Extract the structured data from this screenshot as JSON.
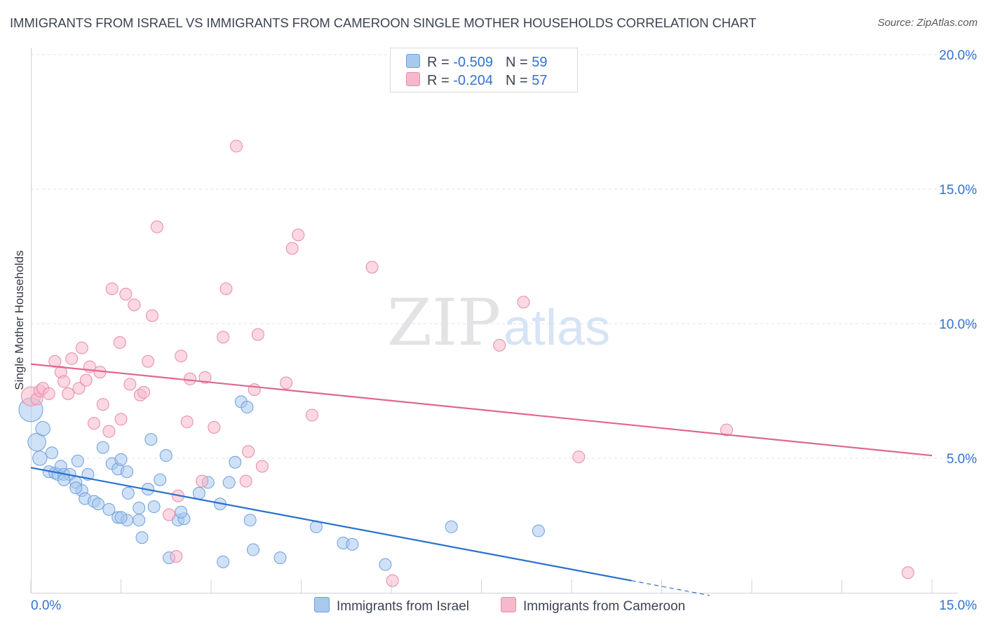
{
  "title": "IMMIGRANTS FROM ISRAEL VS IMMIGRANTS FROM CAMEROON SINGLE MOTHER HOUSEHOLDS CORRELATION CHART",
  "source": "Source: ZipAtlas.com",
  "watermark": {
    "zip": "ZIP",
    "atlas": "atlas"
  },
  "stats": [
    {
      "r_label": "R = ",
      "r_value": "-0.509",
      "n_label": "N = ",
      "n_value": "59",
      "color": "#a8c8ee",
      "border": "#6d9fdc"
    },
    {
      "r_label": "R = ",
      "r_value": "-0.204",
      "n_label": "N = ",
      "n_value": "57",
      "color": "#f7b8cb",
      "border": "#e88aa7"
    }
  ],
  "legend": [
    {
      "label": "Immigrants from Israel",
      "color": "#a8c8ee",
      "border": "#6d9fdc"
    },
    {
      "label": "Immigrants from Cameroon",
      "color": "#f7b8cb",
      "border": "#e88aa7"
    }
  ],
  "chart_data": {
    "type": "scatter",
    "title": "IMMIGRANTS FROM ISRAEL VS IMMIGRANTS FROM CAMEROON SINGLE MOTHER HOUSEHOLDS CORRELATION CHART",
    "xlabel": "",
    "ylabel": "Single Mother Households",
    "xlim": [
      0,
      15
    ],
    "ylim": [
      0,
      20
    ],
    "x_tick_labels": [
      "0.0%",
      "15.0%"
    ],
    "y_tick_labels": [
      {
        "value": 5,
        "label": "5.0%"
      },
      {
        "value": 10,
        "label": "10.0%"
      },
      {
        "value": 15,
        "label": "15.0%"
      },
      {
        "value": 20,
        "label": "20.0%"
      }
    ],
    "grid": true,
    "series": [
      {
        "name": "Immigrants from Israel",
        "color": "#a8c8ee",
        "edge": "#6d9fdc",
        "line_color": "#2a70cd",
        "trend": {
          "x0": 0,
          "y0": 4.65,
          "x1": 10.0,
          "y1": 0.45,
          "dash_to_x": 11.3,
          "dash_to_y": -0.1
        },
        "points": [
          [
            0.0,
            6.8,
            2
          ],
          [
            0.1,
            5.6,
            1.5
          ],
          [
            0.2,
            6.1,
            1.2
          ],
          [
            0.15,
            5.0,
            1.2
          ],
          [
            0.35,
            5.2,
            1
          ],
          [
            0.3,
            4.5,
            1
          ],
          [
            0.4,
            4.45,
            1
          ],
          [
            0.45,
            4.4,
            1
          ],
          [
            0.5,
            4.7,
            1
          ],
          [
            0.55,
            4.4,
            1
          ],
          [
            0.65,
            4.4,
            1
          ],
          [
            0.55,
            4.2,
            1
          ],
          [
            0.75,
            4.1,
            1
          ],
          [
            0.78,
            4.9,
            1
          ],
          [
            0.85,
            3.8,
            1
          ],
          [
            0.9,
            3.5,
            1
          ],
          [
            0.95,
            4.4,
            1
          ],
          [
            0.75,
            3.9,
            1
          ],
          [
            1.05,
            3.4,
            1
          ],
          [
            1.12,
            3.3,
            1
          ],
          [
            1.2,
            5.4,
            1
          ],
          [
            1.3,
            3.1,
            1
          ],
          [
            1.35,
            4.8,
            1
          ],
          [
            1.45,
            4.6,
            1
          ],
          [
            1.5,
            4.95,
            1
          ],
          [
            1.45,
            2.8,
            1
          ],
          [
            1.6,
            2.7,
            1
          ],
          [
            1.8,
            3.15,
            1
          ],
          [
            1.8,
            2.7,
            1
          ],
          [
            1.62,
            3.7,
            1
          ],
          [
            1.85,
            2.05,
            1
          ],
          [
            1.95,
            3.85,
            1
          ],
          [
            2.05,
            3.2,
            1
          ],
          [
            2.15,
            4.2,
            1
          ],
          [
            2.3,
            1.3,
            1
          ],
          [
            2.25,
            5.1,
            1
          ],
          [
            2.45,
            2.7,
            1
          ],
          [
            2.55,
            2.75,
            1
          ],
          [
            2.5,
            3.0,
            1
          ],
          [
            2.8,
            3.7,
            1
          ],
          [
            2.95,
            4.1,
            1
          ],
          [
            3.15,
            3.3,
            1
          ],
          [
            3.2,
            1.15,
            1
          ],
          [
            3.3,
            4.1,
            1
          ],
          [
            3.4,
            4.85,
            1
          ],
          [
            3.5,
            7.1,
            1
          ],
          [
            3.6,
            6.9,
            1
          ],
          [
            3.65,
            2.7,
            1
          ],
          [
            3.7,
            1.6,
            1
          ],
          [
            4.15,
            1.3,
            1
          ],
          [
            4.75,
            2.45,
            1
          ],
          [
            5.2,
            1.85,
            1
          ],
          [
            5.35,
            1.8,
            1
          ],
          [
            5.9,
            1.05,
            1
          ],
          [
            7.0,
            2.45,
            1
          ],
          [
            8.45,
            2.3,
            1
          ],
          [
            1.6,
            4.5,
            1
          ],
          [
            2.0,
            5.7,
            1
          ],
          [
            1.5,
            2.8,
            1
          ]
        ]
      },
      {
        "name": "Immigrants from Cameroon",
        "color": "#f7b8cb",
        "edge": "#e88aa7",
        "line_color": "#e0678f",
        "trend": {
          "x0": 0,
          "y0": 8.5,
          "x1": 15.0,
          "y1": 5.1
        },
        "points": [
          [
            0.0,
            7.3,
            1.6
          ],
          [
            0.1,
            7.2,
            1
          ],
          [
            0.15,
            7.5,
            1
          ],
          [
            0.2,
            7.6,
            1
          ],
          [
            0.3,
            7.4,
            1
          ],
          [
            0.4,
            8.6,
            1
          ],
          [
            0.5,
            8.2,
            1
          ],
          [
            0.55,
            7.85,
            1
          ],
          [
            0.62,
            7.4,
            1
          ],
          [
            0.68,
            8.7,
            1
          ],
          [
            0.8,
            7.6,
            1
          ],
          [
            0.85,
            9.1,
            1
          ],
          [
            0.92,
            7.9,
            1
          ],
          [
            0.98,
            8.4,
            1
          ],
          [
            1.05,
            6.3,
            1
          ],
          [
            1.15,
            8.2,
            1
          ],
          [
            1.2,
            7.0,
            1
          ],
          [
            1.3,
            6.0,
            1
          ],
          [
            1.35,
            11.3,
            1
          ],
          [
            1.48,
            9.3,
            1
          ],
          [
            1.5,
            6.45,
            1
          ],
          [
            1.58,
            11.1,
            1
          ],
          [
            1.65,
            7.75,
            1
          ],
          [
            1.72,
            10.7,
            1
          ],
          [
            1.82,
            7.35,
            1
          ],
          [
            1.88,
            7.45,
            1
          ],
          [
            1.95,
            8.6,
            1
          ],
          [
            2.02,
            10.3,
            1
          ],
          [
            2.1,
            13.6,
            1
          ],
          [
            2.3,
            2.9,
            1
          ],
          [
            2.42,
            1.35,
            1
          ],
          [
            2.45,
            3.6,
            1
          ],
          [
            2.5,
            8.8,
            1
          ],
          [
            2.6,
            6.35,
            1
          ],
          [
            2.65,
            7.95,
            1
          ],
          [
            2.85,
            4.15,
            1
          ],
          [
            2.9,
            8.0,
            1
          ],
          [
            3.05,
            6.15,
            1
          ],
          [
            3.2,
            9.5,
            1
          ],
          [
            3.25,
            11.3,
            1
          ],
          [
            3.42,
            16.6,
            1
          ],
          [
            3.58,
            4.15,
            1
          ],
          [
            3.62,
            5.25,
            1
          ],
          [
            3.72,
            7.55,
            1
          ],
          [
            3.78,
            9.6,
            1
          ],
          [
            3.85,
            4.7,
            1
          ],
          [
            4.25,
            7.8,
            1
          ],
          [
            4.35,
            12.8,
            1
          ],
          [
            4.45,
            13.3,
            1
          ],
          [
            4.68,
            6.6,
            1
          ],
          [
            5.68,
            12.1,
            1
          ],
          [
            6.02,
            0.45,
            1
          ],
          [
            7.8,
            9.2,
            1
          ],
          [
            8.2,
            10.8,
            1
          ],
          [
            9.12,
            5.05,
            1
          ],
          [
            11.58,
            6.05,
            1
          ],
          [
            14.6,
            0.75,
            1
          ]
        ]
      }
    ]
  }
}
